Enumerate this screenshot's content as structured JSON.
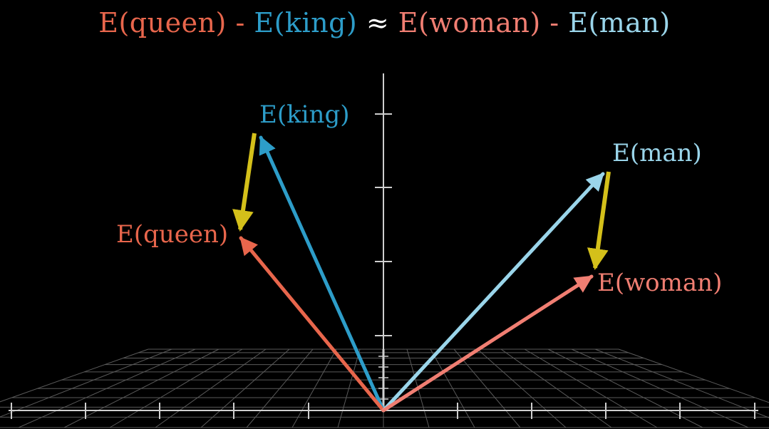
{
  "title": {
    "parts": [
      {
        "text": "E(queen)",
        "color": "#e8664c"
      },
      {
        "text": " - ",
        "color": "#e8664c"
      },
      {
        "text": "E(king)",
        "color": "#2d9dc9"
      },
      {
        "text": " ≈ ",
        "color": "#ffffff"
      },
      {
        "text": "E(woman)",
        "color": "#f07e72"
      },
      {
        "text": " - ",
        "color": "#f07e72"
      },
      {
        "text": "E(man)",
        "color": "#9ad5ea"
      }
    ]
  },
  "vectors": [
    {
      "label": "E(king)",
      "color": "#2d9dc9"
    },
    {
      "label": "E(queen)",
      "color": "#e8664c"
    },
    {
      "label": "E(man)",
      "color": "#9ad5ea"
    },
    {
      "label": "E(woman)",
      "color": "#f07e72"
    }
  ],
  "difference_color": "#d4c01a",
  "axis_color": "#cfcfcf",
  "grid_color": "#5a5a5a",
  "background": "#000000"
}
